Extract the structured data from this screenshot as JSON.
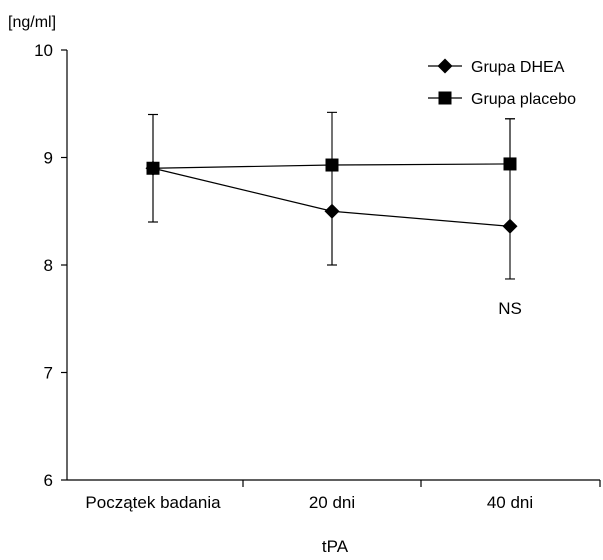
{
  "chart_data": {
    "type": "line",
    "unit_label": "[ng/ml]",
    "xlabel": "tPA",
    "ylabel": "",
    "categories": [
      "Początek badania",
      "20 dni",
      "40 dni"
    ],
    "ylim": [
      6,
      10
    ],
    "yticks": [
      6,
      7,
      8,
      9,
      10
    ],
    "series": [
      {
        "name": "Grupa DHEA",
        "marker": "diamond",
        "values": [
          8.9,
          8.5,
          8.36
        ],
        "error_upper": [
          9.4,
          8.5,
          9.36
        ],
        "error_lower": [
          8.4,
          8.0,
          7.87
        ]
      },
      {
        "name": "Grupa placebo",
        "marker": "square",
        "values": [
          8.9,
          8.93,
          8.94
        ],
        "error_upper": [
          9.4,
          9.42,
          9.36
        ],
        "error_lower": [
          8.4,
          8.0,
          8.94
        ]
      }
    ],
    "annotations": [
      {
        "text": "NS",
        "x_category": "40 dni",
        "y": 7.6
      }
    ],
    "legend_position": "top-right",
    "grid": false
  }
}
